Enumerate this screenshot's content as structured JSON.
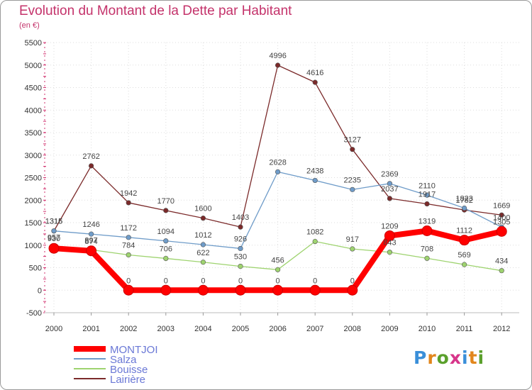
{
  "title": "Evolution du Montant de la Dette par Habitant",
  "subtitle": "(en €)",
  "logo": {
    "text": "Proxiti",
    "letter_colors": [
      "#3a8fd9",
      "#e2861c",
      "#5aa02c",
      "#d7358a",
      "#3a8fd9",
      "#e2861c",
      "#5aa02c"
    ]
  },
  "chart_data": {
    "type": "line",
    "title": "Evolution du Montant de la Dette par Habitant",
    "subtitle": "(en €)",
    "x": [
      "2000",
      "2001",
      "2002",
      "2003",
      "2004",
      "2005",
      "2006",
      "2007",
      "2008",
      "2009",
      "2010",
      "2011",
      "2012"
    ],
    "ylim": [
      -500,
      5500
    ],
    "yticks": [
      "-500",
      "0",
      "500",
      "1000",
      "1500",
      "2000",
      "2500",
      "3000",
      "3500",
      "4000",
      "4500",
      "5000",
      "5500"
    ],
    "grid": true,
    "legend_position": "bottom-left",
    "series": [
      {
        "name": "MONTJOI",
        "color": "#ff0000",
        "values": [
          930,
          874,
          0,
          0,
          0,
          0,
          0,
          0,
          0,
          1209,
          1319,
          1112,
          1305
        ],
        "labels": [
          "930",
          "874",
          "0",
          "0",
          "0",
          "0",
          "0",
          "0",
          "0",
          "1209",
          "1319",
          "1112",
          "1305"
        ]
      },
      {
        "name": "Salza",
        "color": "#6f9cc9",
        "values": [
          1316,
          1246,
          1172,
          1094,
          1012,
          926,
          2628,
          2438,
          2235,
          2369,
          2110,
          1823,
          1400
        ],
        "labels": [
          "1316",
          "1246",
          "1172",
          "1094",
          "1012",
          "926",
          "2628",
          "2438",
          "2235",
          "2369",
          "2110",
          "1823",
          "1400"
        ]
      },
      {
        "name": "Bouisse",
        "color": "#9ed36f",
        "values": [
          957,
          897,
          784,
          706,
          622,
          530,
          456,
          1082,
          917,
          843,
          708,
          569,
          434
        ],
        "labels": [
          "957",
          "897",
          "784",
          "706",
          "622",
          "530",
          "456",
          "1082",
          "917",
          "843",
          "708",
          "569",
          "434"
        ]
      },
      {
        "name": "Lairière",
        "color": "#7b2a2a",
        "values": [
          1315,
          2762,
          1942,
          1770,
          1600,
          1403,
          4996,
          4616,
          3127,
          2037,
          1917,
          1782,
          1669
        ],
        "labels": [
          "1315",
          "2762",
          "1942",
          "1770",
          "1600",
          "1403",
          "4996",
          "4616",
          "3127",
          "2037",
          "1917",
          "1782",
          "1669"
        ]
      }
    ]
  }
}
